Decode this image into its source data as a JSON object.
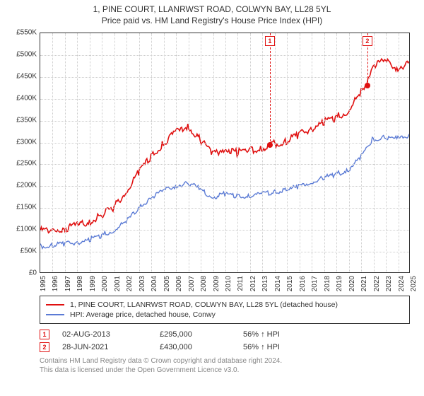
{
  "title": "1, PINE COURT, LLANRWST ROAD, COLWYN BAY, LL28 5YL",
  "subtitle": "Price paid vs. HM Land Registry's House Price Index (HPI)",
  "chart": {
    "type": "line",
    "background_color": "#ffffff",
    "grid_color": "#cccccc",
    "border_color": "#333333",
    "ylim": [
      0,
      550000
    ],
    "ytick_step": 50000,
    "yticks": [
      "£0",
      "£50K",
      "£100K",
      "£150K",
      "£200K",
      "£250K",
      "£300K",
      "£350K",
      "£400K",
      "£450K",
      "£500K",
      "£550K"
    ],
    "xlim": [
      1995,
      2025
    ],
    "xticks": [
      1995,
      1996,
      1997,
      1998,
      1999,
      2000,
      2001,
      2002,
      2003,
      2004,
      2005,
      2006,
      2007,
      2008,
      2009,
      2010,
      2011,
      2012,
      2013,
      2014,
      2015,
      2016,
      2017,
      2018,
      2019,
      2020,
      2021,
      2022,
      2023,
      2024,
      2025
    ],
    "series": [
      {
        "name": "1, PINE COURT, LLANRWST ROAD, COLWYN BAY, LL28 5YL (detached house)",
        "color": "#e01010",
        "line_width": 1.6,
        "years": [
          1995.0,
          1996.0,
          1997.0,
          1998.0,
          1999.0,
          2000.0,
          2001.0,
          2002.0,
          2003.0,
          2004.0,
          2005.0,
          2006.0,
          2007.0,
          2008.0,
          2009.0,
          2010.0,
          2011.0,
          2012.0,
          2013.0,
          2013.6,
          2014.0,
          2015.0,
          2016.0,
          2017.0,
          2018.0,
          2019.0,
          2020.0,
          2021.0,
          2021.5,
          2022.0,
          2023.0,
          2024.0,
          2025.0
        ],
        "values": [
          100000,
          102000,
          105000,
          112000,
          120000,
          135000,
          155000,
          190000,
          235000,
          270000,
          300000,
          325000,
          340000,
          310000,
          275000,
          290000,
          280000,
          285000,
          290000,
          295000,
          300000,
          305000,
          320000,
          335000,
          350000,
          360000,
          375000,
          415000,
          430000,
          480000,
          490000,
          475000,
          485000
        ]
      },
      {
        "name": "HPI: Average price, detached house, Conwy",
        "color": "#5b7bd5",
        "line_width": 1.4,
        "years": [
          1995.0,
          1996.0,
          1997.0,
          1998.0,
          1999.0,
          2000.0,
          2001.0,
          2002.0,
          2003.0,
          2004.0,
          2005.0,
          2006.0,
          2007.0,
          2008.0,
          2009.0,
          2010.0,
          2011.0,
          2012.0,
          2013.0,
          2014.0,
          2015.0,
          2016.0,
          2017.0,
          2018.0,
          2019.0,
          2020.0,
          2021.0,
          2022.0,
          2023.0,
          2024.0,
          2025.0
        ],
        "values": [
          63000,
          65000,
          68000,
          72000,
          78000,
          88000,
          100000,
          120000,
          150000,
          175000,
          190000,
          202000,
          208000,
          195000,
          175000,
          183000,
          178000,
          180000,
          183000,
          188000,
          192000,
          200000,
          210000,
          220000,
          228000,
          238000,
          265000,
          308000,
          315000,
          310000,
          318000
        ]
      }
    ],
    "markers": [
      {
        "label": "1",
        "year": 2013.6,
        "value": 295000
      },
      {
        "label": "2",
        "year": 2021.5,
        "value": 430000
      }
    ]
  },
  "legend": {
    "items": [
      {
        "color": "#e01010",
        "label": "1, PINE COURT, LLANRWST ROAD, COLWYN BAY, LL28 5YL (detached house)"
      },
      {
        "color": "#5b7bd5",
        "label": "HPI: Average price, detached house, Conwy"
      }
    ]
  },
  "transactions": [
    {
      "num": "1",
      "date": "02-AUG-2013",
      "price": "£295,000",
      "delta": "56% ↑ HPI"
    },
    {
      "num": "2",
      "date": "28-JUN-2021",
      "price": "£430,000",
      "delta": "56% ↑ HPI"
    }
  ],
  "footer": {
    "line1": "Contains HM Land Registry data © Crown copyright and database right 2024.",
    "line2": "This data is licensed under the Open Government Licence v3.0."
  }
}
